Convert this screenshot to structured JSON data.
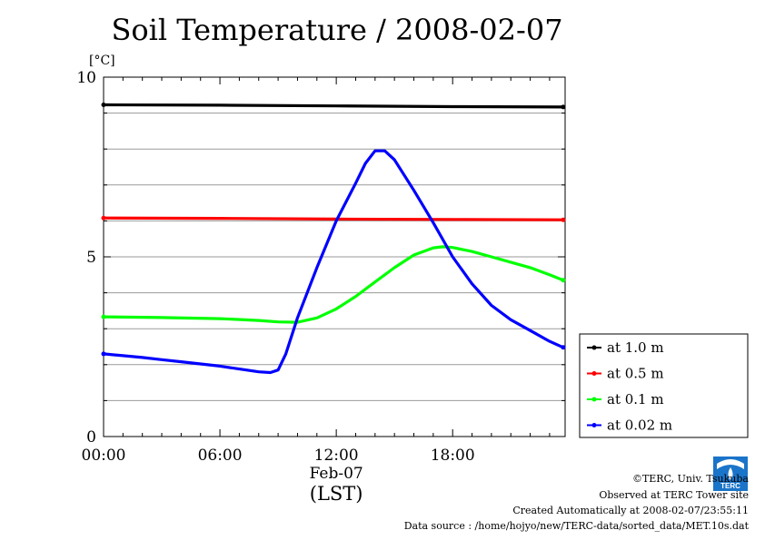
{
  "title": "Soil Temperature / 2008-02-07",
  "chart_data": {
    "type": "line",
    "ylabel": "[°C]",
    "xlabel": "(LST)",
    "date_label": "Feb-07",
    "ylim": [
      0,
      10
    ],
    "xlim": [
      0,
      23.8
    ],
    "y_ticks": [
      0,
      5,
      10
    ],
    "x_ticks": [
      {
        "x": 0,
        "label": "00:00"
      },
      {
        "x": 6,
        "label": "06:00"
      },
      {
        "x": 12,
        "label": "12:00"
      },
      {
        "x": 18,
        "label": "18:00"
      }
    ],
    "grid": true,
    "legend_position": "right",
    "series": [
      {
        "name": "at 1.0 m",
        "color": "#000000",
        "x": [
          0,
          6,
          12,
          18,
          23.7
        ],
        "y": [
          9.23,
          9.22,
          9.2,
          9.18,
          9.17
        ]
      },
      {
        "name": "at 0.5 m",
        "color": "#ff0000",
        "x": [
          0,
          6,
          12,
          18,
          23.7
        ],
        "y": [
          6.08,
          6.07,
          6.05,
          6.04,
          6.03
        ]
      },
      {
        "name": "at 0.1 m",
        "color": "#00ff00",
        "x": [
          0,
          3,
          6,
          8,
          9,
          10,
          11,
          12,
          13,
          14,
          15,
          16,
          17,
          17.5,
          18,
          19,
          20,
          21,
          22,
          23,
          23.7
        ],
        "y": [
          3.33,
          3.31,
          3.28,
          3.23,
          3.19,
          3.18,
          3.3,
          3.55,
          3.9,
          4.3,
          4.7,
          5.05,
          5.25,
          5.28,
          5.26,
          5.15,
          5.0,
          4.85,
          4.7,
          4.5,
          4.35
        ]
      },
      {
        "name": "at 0.02 m",
        "color": "#0000ff",
        "x": [
          0,
          1,
          2,
          3,
          4,
          5,
          6,
          7,
          8,
          8.6,
          9.0,
          9.4,
          10,
          11,
          12,
          13,
          13.5,
          14,
          14.5,
          15,
          16,
          17,
          18,
          19,
          20,
          21,
          22,
          23,
          23.7
        ],
        "y": [
          2.3,
          2.25,
          2.2,
          2.14,
          2.08,
          2.02,
          1.96,
          1.88,
          1.8,
          1.78,
          1.85,
          2.3,
          3.3,
          4.7,
          6.0,
          7.05,
          7.6,
          7.95,
          7.95,
          7.7,
          6.85,
          5.95,
          5.0,
          4.25,
          3.65,
          3.25,
          2.95,
          2.65,
          2.48
        ]
      }
    ]
  },
  "footer": {
    "copyright": "©TERC, Univ. Tsukuba",
    "observed": "Observed at TERC Tower site",
    "created": "Created Automatically at 2008-02-07/23:55:11",
    "source": "Data source : /home/hojyo/new/TERC-data/sorted_data/MET.10s.dat",
    "logo_text": "TERC"
  }
}
